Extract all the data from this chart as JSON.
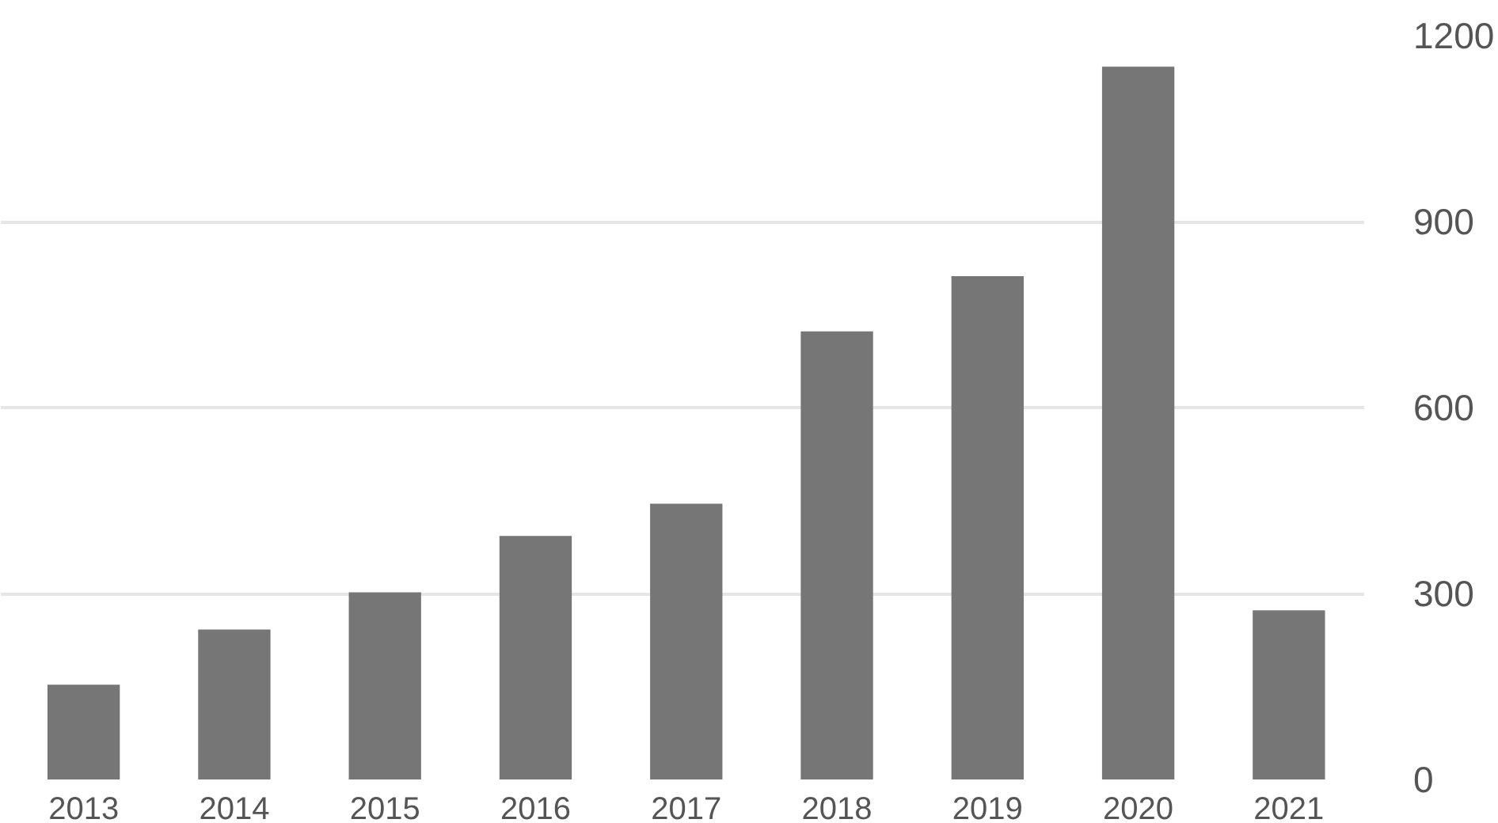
{
  "chart_data": {
    "type": "bar",
    "categories": [
      "2013",
      "2014",
      "2015",
      "2016",
      "2017",
      "2018",
      "2019",
      "2020",
      "2021"
    ],
    "values": [
      153,
      242,
      302,
      393,
      445,
      723,
      812,
      1150,
      273
    ],
    "color": "#767676",
    "ylim": [
      0,
      1200
    ],
    "yticks": [
      0,
      300,
      600,
      900,
      1200
    ],
    "grid": "y"
  }
}
